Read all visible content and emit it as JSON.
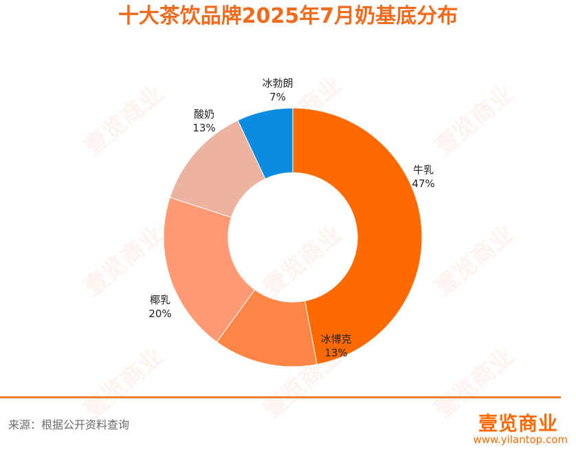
{
  "title": "十大茶饮品牌2025年7月奶基底分布",
  "source_text": "来源：根据公开资料查询",
  "brand": {
    "logo_text": "壹览商业",
    "url": "www.yilantop.com",
    "watermark_text": "壹览商业"
  },
  "colors": {
    "accent": "#FF6A00",
    "title": "#F26A1B",
    "divider": "#F07F32",
    "watermark": "#F26A1B"
  },
  "chart_data": {
    "type": "pie",
    "donut": true,
    "title": "十大茶饮品牌2025年7月奶基底分布",
    "slices": [
      {
        "label": "牛乳",
        "value": 47,
        "value_label": "47%",
        "color": "#FF6A00"
      },
      {
        "label": "冰博克",
        "value": 13,
        "value_label": "13%",
        "color": "#FF8645"
      },
      {
        "label": "椰乳",
        "value": 20,
        "value_label": "20%",
        "color": "#FF9A75"
      },
      {
        "label": "酸奶",
        "value": 13,
        "value_label": "13%",
        "color": "#EBB3A0"
      },
      {
        "label": "冰勃朗",
        "value": 7,
        "value_label": "7%",
        "color": "#0A8CE0"
      }
    ]
  }
}
